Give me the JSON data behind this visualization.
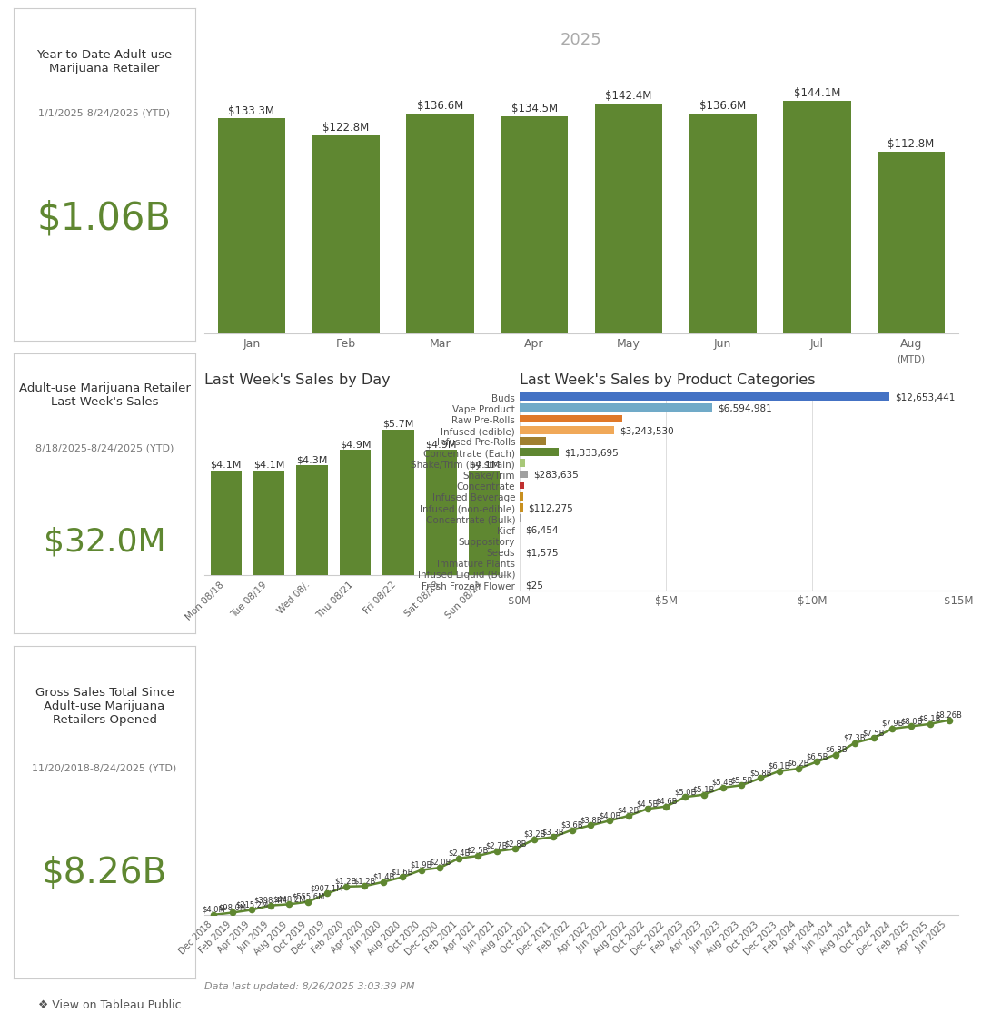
{
  "bar1": {
    "title": "2025",
    "months": [
      "Jan",
      "Feb",
      "Mar",
      "Apr",
      "May",
      "Jun",
      "Jul",
      "Aug"
    ],
    "values": [
      133.3,
      122.8,
      136.6,
      134.5,
      142.4,
      136.6,
      144.1,
      112.8
    ],
    "labels": [
      "$133.3M",
      "$122.8M",
      "$136.6M",
      "$134.5M",
      "$142.4M",
      "$136.6M",
      "$144.1M",
      "$112.8M"
    ],
    "bar_color": "#5f8731",
    "ytd_total": "$1.06B",
    "left_title": "Year to Date Adult-use\nMarijuana Retailer",
    "left_date": "1/1/2025-8/24/2025 (YTD)"
  },
  "bar2": {
    "days": [
      "Mon 08/18",
      "Tue 08/19",
      "Wed 08/.",
      "Thu 08/21",
      "Fri 08/22",
      "Sat 08/23",
      "Sun 08/24"
    ],
    "values": [
      4.1,
      4.1,
      4.3,
      4.9,
      5.7,
      4.9,
      4.1
    ],
    "labels": [
      "$4.1M",
      "$4.1M",
      "$4.3M",
      "$4.9M",
      "$5.7M",
      "$4.9M",
      "$4.1M"
    ],
    "bar_color": "#5f8731",
    "title": "Last Week's Sales by Day",
    "ytd_total": "$32.0M",
    "left_title": "Adult-use Marijuana Retailer\nLast Week's Sales",
    "left_date": "8/18/2025-8/24/2025 (YTD)"
  },
  "categories": {
    "title": "Last Week's Sales by Product Categories",
    "items": [
      "Buds",
      "Vape Product",
      "Raw Pre-Rolls",
      "Infused (edible)",
      "Infused Pre-Rolls",
      "Concentrate (Each)",
      "Shake/Trim (by strain)",
      "Shake/Trim",
      "Concentrate",
      "Infused Beverage",
      "Infused (non-edible)",
      "Concentrate (Bulk)",
      "Kief",
      "Suppository",
      "Seeds",
      "Immature Plants",
      "Infused Liquid (Bulk)",
      "Fresh Frozen Flower"
    ],
    "values": [
      12653441,
      6594981,
      3500000,
      3243530,
      900000,
      1333695,
      200000,
      283635,
      150000,
      120000,
      112275,
      50000,
      6454,
      3000,
      1575,
      500,
      200,
      25
    ],
    "labels": [
      "$12,653,441",
      "$6,594,981",
      "",
      "$3,243,530",
      "",
      "$1,333,695",
      "",
      "$283,635",
      "",
      "",
      "$112,275",
      "",
      "$6,454",
      "",
      "$1,575",
      "",
      "",
      "$25"
    ],
    "colors": [
      "#4472c4",
      "#70aac8",
      "#e07828",
      "#f0a858",
      "#a08030",
      "#5f8731",
      "#a8c878",
      "#a0a0a0",
      "#c03030",
      "#c89020",
      "#c89020",
      "#a0a0a0",
      "#a0a0a0",
      "#a0a0a0",
      "#a0a0a0",
      "#a0a0a0",
      "#a0a0a0",
      "#a0a0a0"
    ],
    "xmax": 15000000,
    "xticks": [
      0,
      5000000,
      10000000,
      15000000
    ],
    "xticklabels": [
      "$0M",
      "$5M",
      "$10M",
      "$15M"
    ]
  },
  "line": {
    "date_range": "11/20/2018-8/24/2025 (YTD)",
    "ytd_total": "$8.26B",
    "left_title": "Gross Sales Total Since\nAdult-use Marijuana\nRetailers Opened",
    "x_labels": [
      "Dec 2018",
      "Feb 2019",
      "Apr 2019",
      "Jun 2019",
      "Aug 2019",
      "Oct 2019",
      "Dec 2019",
      "Feb 2020",
      "Apr 2020",
      "Jun 2020",
      "Aug 2020",
      "Oct 2020",
      "Dec 2020",
      "Feb 2021",
      "Apr 2021",
      "Jun 2021",
      "Aug 2021",
      "Oct 2021",
      "Dec 2021",
      "Feb 2022",
      "Apr 2022",
      "Jun 2022",
      "Aug 2022",
      "Oct 2022",
      "Dec 2022",
      "Feb 2023",
      "Apr 2023",
      "Jun 2023",
      "Aug 2023",
      "Oct 2023",
      "Dec 2023",
      "Feb 2024",
      "Apr 2024",
      "Jun 2024",
      "Aug 2024",
      "Oct 2024",
      "Dec 2024",
      "Feb 2025",
      "Apr 2025",
      "Jun 2025"
    ],
    "y_values": [
      4.0,
      98.0,
      215.2,
      398.4,
      448.2,
      555.6,
      907.1,
      1200,
      1220,
      1400,
      1600,
      1900,
      2000,
      2400,
      2500,
      2700,
      2800,
      3200,
      3300,
      3600,
      3800,
      4000,
      4200,
      4500,
      4600,
      5000,
      5100,
      5400,
      5500,
      5800,
      6100,
      6200,
      6500,
      6800,
      7300,
      7500,
      7900,
      8000,
      8100,
      8260
    ],
    "point_labels": [
      "$4.0M",
      "$98.0M",
      "$215.2M",
      "$398.4M",
      "$448.2M",
      "$555.6M",
      "$907.1M",
      "$1.2B",
      "$1.2B",
      "$1.4B",
      "$1.6B",
      "$1.9B",
      "$2.0B",
      "$2.4B",
      "$2.5B",
      "$2.7B",
      "$2.8B",
      "$3.2B",
      "$3.3B",
      "$3.6B",
      "$3.8B",
      "$4.0B",
      "$4.2B",
      "$4.5B",
      "$4.6B",
      "$5.0B",
      "$5.1B",
      "$5.4B",
      "$5.5B",
      "$5.8B",
      "$6.1B",
      "$6.2B",
      "$6.5B",
      "$6.8B",
      "$7.3B",
      "$7.5B",
      "$7.9B",
      "$8.0B",
      "$8.1B",
      "$8.26B"
    ],
    "line_color": "#5f8731",
    "marker_color": "#5f8731",
    "data_updated": "Data last updated: 8/26/2025 3:03:39 PM"
  },
  "bg_color": "#ffffff",
  "grid_color": "#d8d8d8",
  "text_color": "#333333",
  "border_color": "#cccccc",
  "footer_text": "❖ View on Tableau Public"
}
